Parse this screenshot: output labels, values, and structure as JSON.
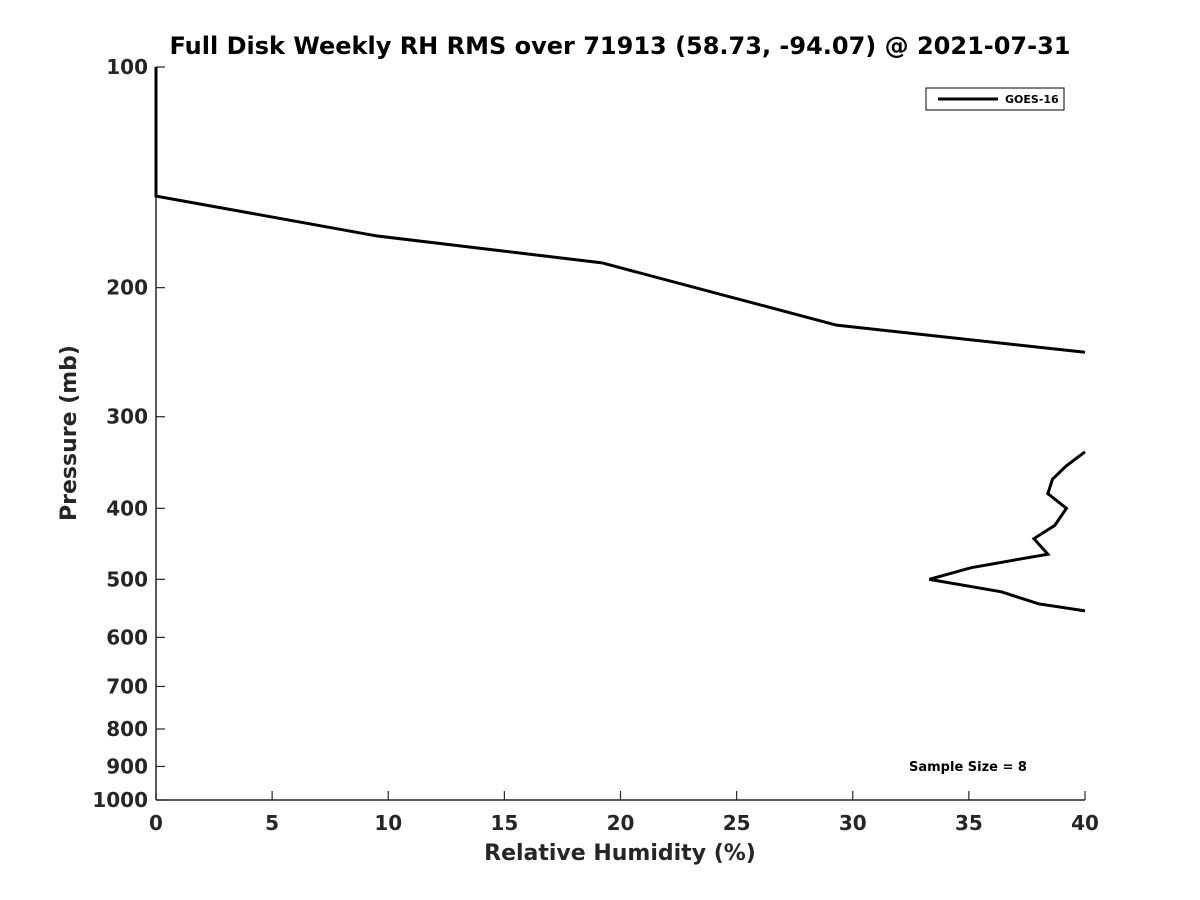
{
  "chart_data": {
    "type": "line",
    "title": "Full Disk Weekly RH RMS over 71913 (58.73, -94.07) @ 2021-07-31",
    "xlabel": "Relative Humidity (%)",
    "ylabel": "Pressure (mb)",
    "xlim": [
      0,
      40
    ],
    "ylim": [
      100,
      1000
    ],
    "yscale": "log",
    "y_reversed": true,
    "xticks": [
      0,
      5,
      10,
      15,
      20,
      25,
      30,
      35,
      40
    ],
    "xtick_labels": [
      "0",
      "5",
      "10",
      "15",
      "20",
      "25",
      "30",
      "35",
      "40"
    ],
    "yticks": [
      100,
      200,
      300,
      400,
      500,
      600,
      700,
      800,
      900,
      1000
    ],
    "ytick_labels": [
      "100",
      "200",
      "300",
      "400",
      "500",
      "600",
      "700",
      "800",
      "900",
      "1000"
    ],
    "grid": false,
    "legend": {
      "position": "top-right",
      "entries": [
        "GOES-16"
      ]
    },
    "annotation": "Sample Size = 8",
    "line_color": "#000000",
    "series": [
      {
        "name": "GOES-16",
        "segments": [
          {
            "x": [
              0,
              0,
              9.5,
              19.2,
              24.5,
              29.3,
              40
            ],
            "p": [
              100,
              150,
              170,
              185,
              205,
              225,
              245
            ]
          },
          {
            "x": [
              40,
              39.2,
              38.6,
              38.4,
              39.2,
              38.7,
              37.8,
              38.4,
              35.1,
              33.3,
              36.4,
              38.0,
              40
            ],
            "p": [
              335,
              350,
              365,
              382,
              400,
              422,
              440,
              462,
              482,
              500,
              520,
              540,
              552
            ]
          }
        ]
      }
    ]
  }
}
